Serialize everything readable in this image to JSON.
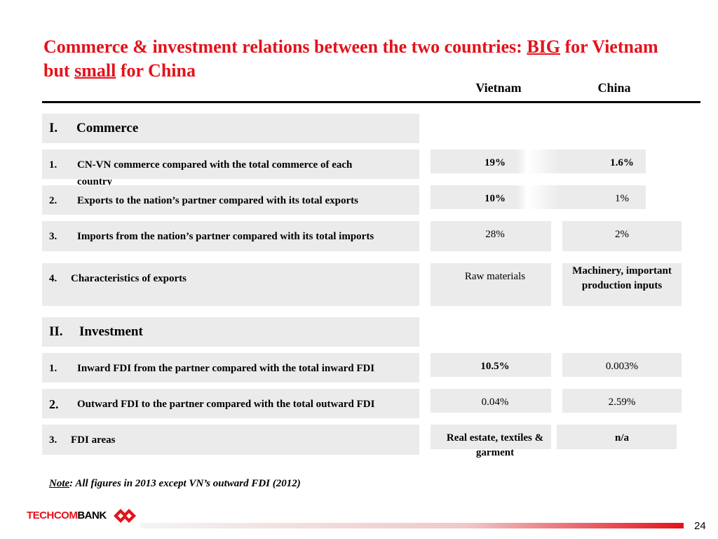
{
  "title": {
    "parts": [
      "Commerce & investment relations between the two countries: ",
      "BIG",
      " for Vietnam but ",
      "small",
      " for China"
    ]
  },
  "columns": [
    "Vietnam",
    "China"
  ],
  "sections": [
    {
      "number": "I.",
      "label": "Commerce",
      "rows": [
        {
          "number": "1.",
          "label": "CN-VN commerce compared with the total commerce of each country",
          "vietnam": {
            "text": "19%",
            "bold": true
          },
          "china": {
            "text": "1.6%",
            "bold": true
          }
        },
        {
          "number": "2.",
          "label": "Exports to the nation’s partner compared with its total exports",
          "vietnam": {
            "text": "10%",
            "bold": true
          },
          "china": {
            "text": "1%",
            "bold": false
          }
        },
        {
          "number": "3.",
          "label": "Imports from the nation’s partner compared with its total imports",
          "vietnam": {
            "text": "28%",
            "bold": false
          },
          "china": {
            "text": "2%",
            "bold": false
          }
        },
        {
          "number": "4.",
          "label": "Characteristics of exports",
          "vietnam": {
            "text": "Raw materials",
            "bold": false
          },
          "china": {
            "text": "Machinery, important production inputs",
            "bold": true
          }
        }
      ]
    },
    {
      "number": "II.",
      "label": "Investment",
      "rows": [
        {
          "number": "1.",
          "label": "Inward FDI from the partner compared with the total inward FDI",
          "vietnam": {
            "text": "10.5%",
            "bold": true
          },
          "china": {
            "text": "0.003%",
            "bold": false
          }
        },
        {
          "number": "2.",
          "label": "Outward FDI to the partner compared with the total outward FDI",
          "vietnam": {
            "text": "0.04%",
            "bold": false
          },
          "china": {
            "text": "2.59%",
            "bold": false
          }
        },
        {
          "number": "3.",
          "label": "FDI areas",
          "vietnam": {
            "text": "Real estate, textiles & garment",
            "bold": true
          },
          "china": {
            "text": "n/a",
            "bold": true
          }
        }
      ]
    }
  ],
  "note": {
    "label": "Note",
    "text": ": All figures in 2013 except VN’s outward FDI (2012)"
  },
  "logo": {
    "parts": [
      "TECHCOM",
      "BANK"
    ]
  },
  "page_number": "24"
}
